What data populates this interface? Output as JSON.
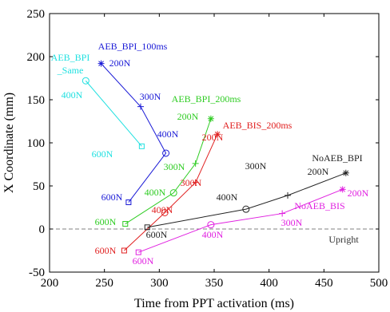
{
  "chart_data": {
    "type": "line",
    "title": "",
    "xlabel": "Time from PPT activation (ms)",
    "ylabel": "X Coordinate (mm)",
    "xlim": [
      200,
      500
    ],
    "ylim": [
      -50,
      250
    ],
    "x_ticks": [
      "200",
      "250",
      "300",
      "350",
      "400",
      "450",
      "500"
    ],
    "y_ticks": [
      "-50",
      "0",
      "50",
      "100",
      "150",
      "200",
      "250"
    ],
    "grid": false,
    "legend": "none",
    "reference_line": {
      "y": 0,
      "label": "Upright",
      "color": "#808080",
      "style": "dashed"
    },
    "series": [
      {
        "name": "AEB_BPI_100ms",
        "color": "#1a1ad6",
        "points": [
          {
            "x": 247,
            "y": 192,
            "marker": "star",
            "label": "200N"
          },
          {
            "x": 283,
            "y": 142,
            "marker": "plus",
            "label": "300N"
          },
          {
            "x": 306,
            "y": 88,
            "marker": "circle",
            "label": "400N"
          },
          {
            "x": 272,
            "y": 31,
            "marker": "square",
            "label": "600N"
          }
        ]
      },
      {
        "name": "AEB_BPI\n_Same",
        "color": "#1fe0e0",
        "points": [
          {
            "x": 233,
            "y": 172,
            "marker": "circle",
            "label": "400N"
          },
          {
            "x": 284,
            "y": 96,
            "marker": "square",
            "label": "600N"
          }
        ]
      },
      {
        "name": "AEB_BPI_200ms",
        "color": "#2ecc22",
        "points": [
          {
            "x": 269,
            "y": 6,
            "marker": "square",
            "label": "600N"
          },
          {
            "x": 313,
            "y": 42,
            "marker": "circle",
            "label": "400N"
          },
          {
            "x": 333,
            "y": 76,
            "marker": "plus",
            "label": "300N"
          },
          {
            "x": 347,
            "y": 128,
            "marker": "star",
            "label": "200N"
          }
        ]
      },
      {
        "name": "AEB_BIS_200ms",
        "color": "#e02020",
        "points": [
          {
            "x": 268,
            "y": -25,
            "marker": "square",
            "label": "600N"
          },
          {
            "x": 305,
            "y": 19,
            "marker": "circle",
            "label": "400N"
          },
          {
            "x": 333,
            "y": 54,
            "marker": "plus",
            "label": "300N"
          },
          {
            "x": 353,
            "y": 110,
            "marker": "star",
            "label": "200N"
          }
        ]
      },
      {
        "name": "NoAEB_BPI",
        "color": "#222222",
        "points": [
          {
            "x": 289,
            "y": 2,
            "marker": "square",
            "label": "600N"
          },
          {
            "x": 379,
            "y": 23,
            "marker": "circle",
            "label": "400N"
          },
          {
            "x": 417,
            "y": 39,
            "marker": "plus",
            "label": "300N"
          },
          {
            "x": 470,
            "y": 65,
            "marker": "star",
            "label": "200N"
          }
        ]
      },
      {
        "name": "NoAEB_BIS",
        "color": "#e020e0",
        "points": [
          {
            "x": 281,
            "y": -27,
            "marker": "square",
            "label": "600N"
          },
          {
            "x": 347,
            "y": 5,
            "marker": "circle",
            "label": "400N"
          },
          {
            "x": 412,
            "y": 18,
            "marker": "plus",
            "label": "300N"
          },
          {
            "x": 467,
            "y": 46,
            "marker": "star",
            "label": "200N"
          }
        ]
      }
    ]
  }
}
